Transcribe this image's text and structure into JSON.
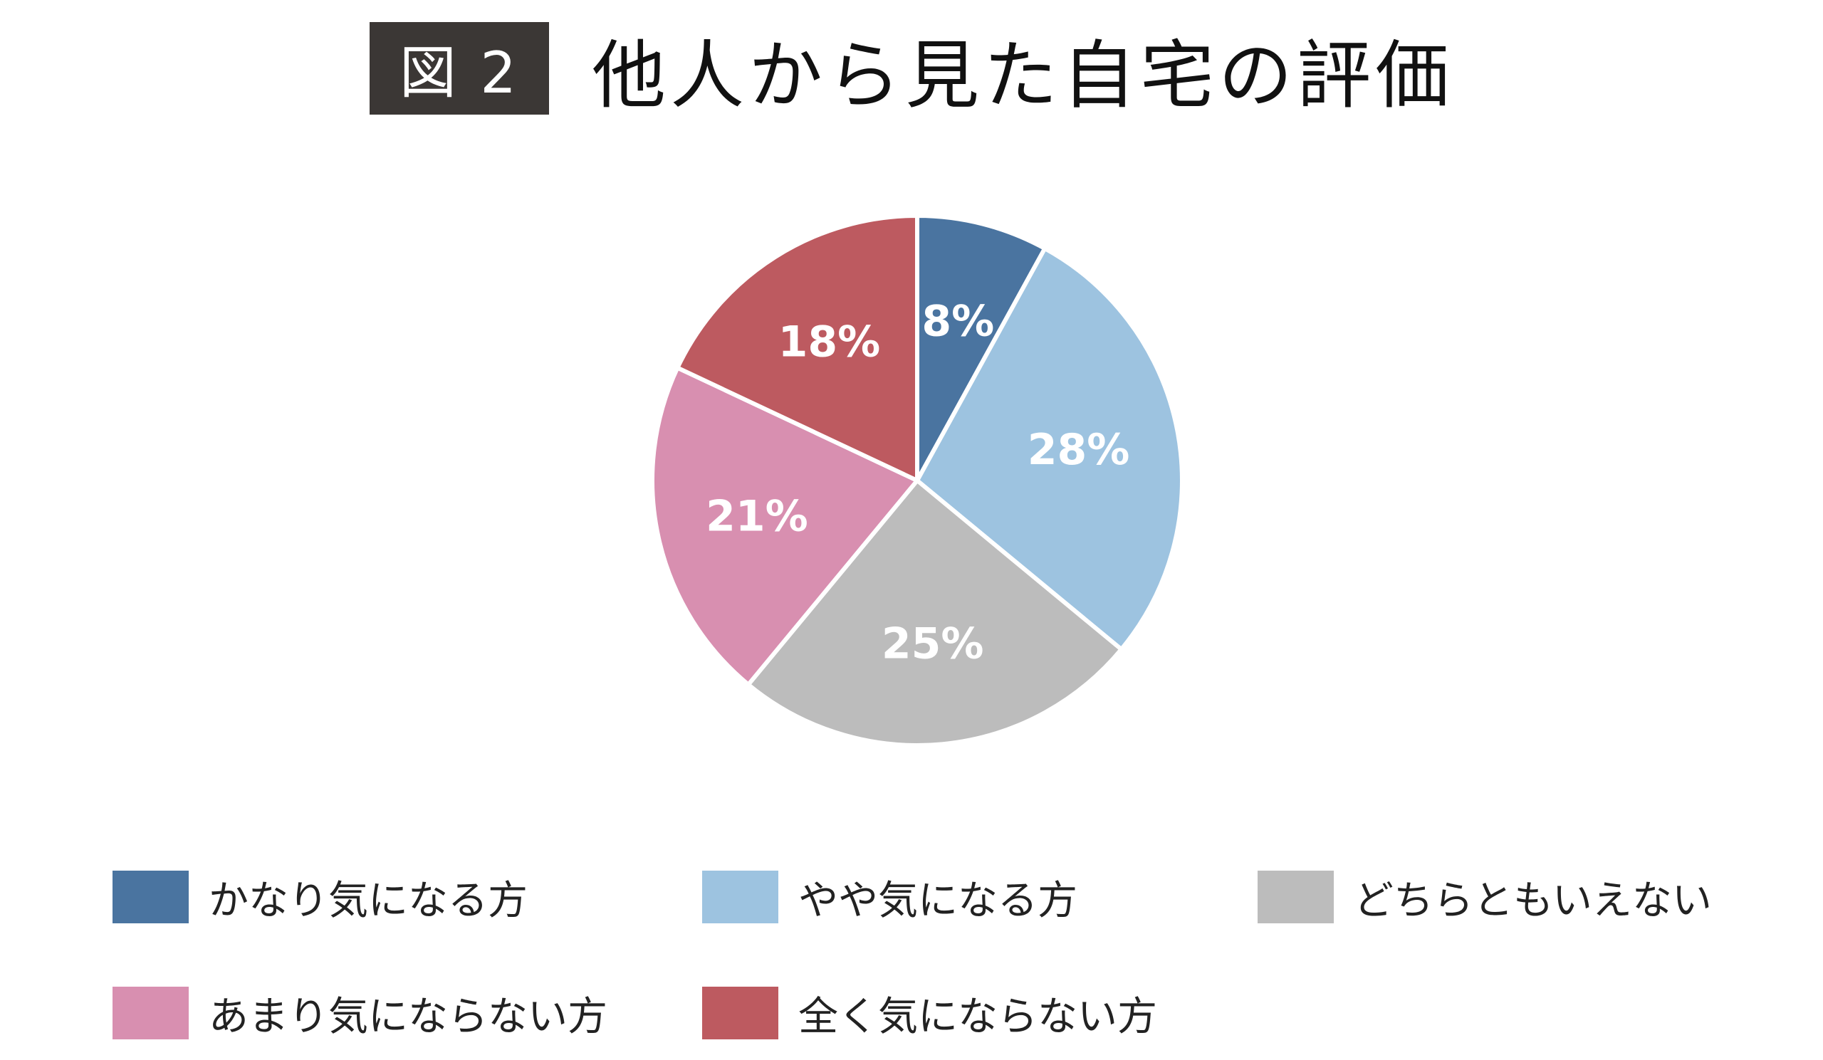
{
  "figure": {
    "badge": "図 2",
    "title": "他人から見た自宅の評価"
  },
  "chart_data": {
    "type": "pie",
    "start": "12 o'clock",
    "direction": "clockwise",
    "slices": [
      {
        "label": "かなり気になる方",
        "value": 8,
        "data_label": "8%",
        "color": "#4a74a0"
      },
      {
        "label": "やや気になる方",
        "value": 28,
        "data_label": "28%",
        "color": "#9dc3e0"
      },
      {
        "label": "どちらともいえない",
        "value": 25,
        "data_label": "25%",
        "color": "#bcbcbc"
      },
      {
        "label": "あまり気にならない方",
        "value": 21,
        "data_label": "21%",
        "color": "#d88fb0"
      },
      {
        "label": "全く気にならない方",
        "value": 18,
        "data_label": "18%",
        "color": "#bd5a60"
      }
    ],
    "legend_position": "bottom"
  }
}
